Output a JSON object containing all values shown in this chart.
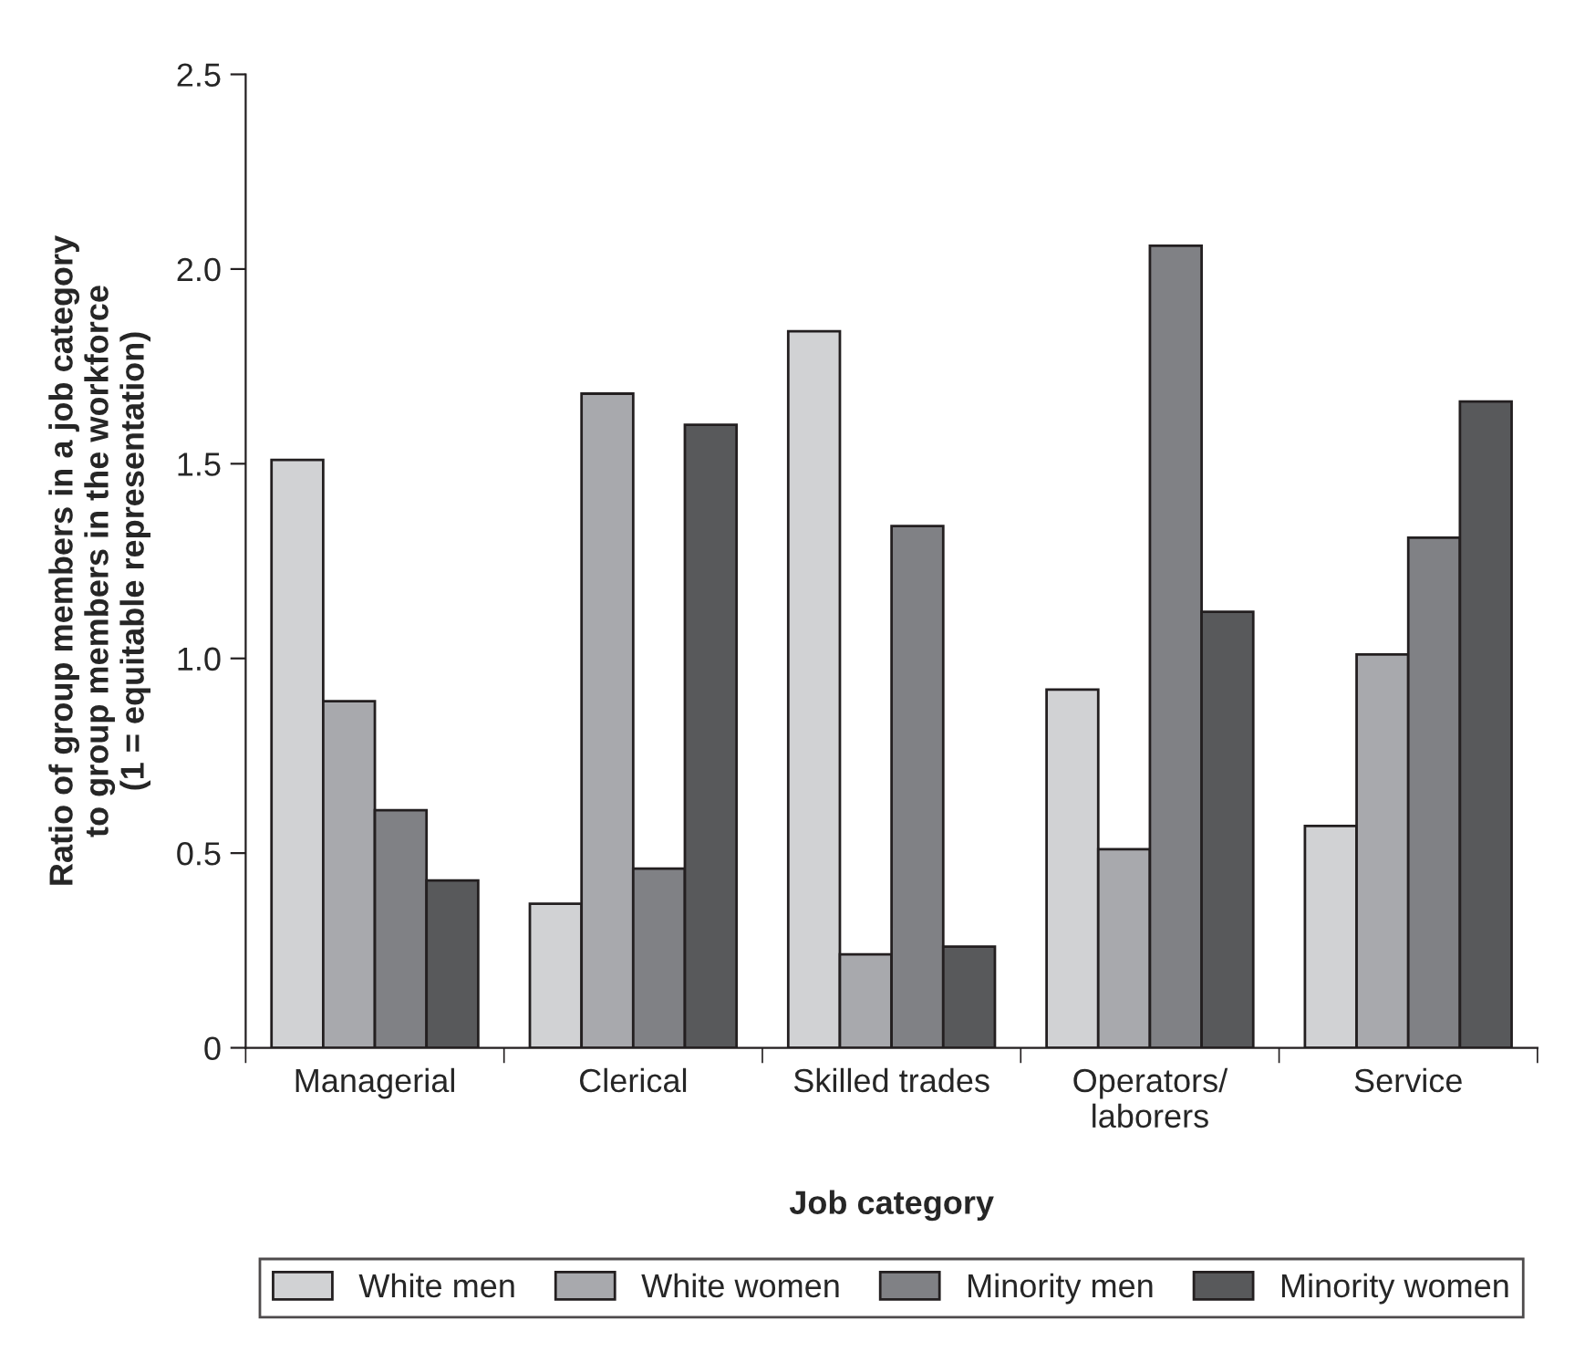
{
  "chart_data": {
    "type": "bar",
    "xlabel": "Job category",
    "ylabel": "Ratio of group members in a job category\nto group members in the workforce\n(1 = equitable representation)",
    "categories": [
      "Managerial",
      "Clerical",
      "Skilled trades",
      "Operators/\nlaborers",
      "Service"
    ],
    "series": [
      {
        "name": "White men",
        "color": "#d1d2d4",
        "values": [
          1.51,
          0.37,
          1.84,
          0.92,
          0.57
        ]
      },
      {
        "name": "White women",
        "color": "#a8a9ad",
        "values": [
          0.89,
          1.68,
          0.24,
          0.51,
          1.01
        ]
      },
      {
        "name": "Minority men",
        "color": "#808185",
        "values": [
          0.61,
          0.46,
          1.34,
          2.06,
          1.31
        ]
      },
      {
        "name": "Minority women",
        "color": "#58595b",
        "values": [
          0.43,
          1.6,
          0.26,
          1.12,
          1.66
        ]
      }
    ],
    "ylim": [
      0,
      2.5
    ],
    "yticks": [
      0,
      {
        "value": 0.5,
        "label": "0.5"
      },
      {
        "value": 1.0,
        "label": "1.0"
      },
      {
        "value": 1.5,
        "label": "1.5"
      },
      {
        "value": 2.0,
        "label": "2.0"
      },
      {
        "value": 2.5,
        "label": "2.5"
      }
    ],
    "grid": false,
    "legend": "bottom"
  }
}
